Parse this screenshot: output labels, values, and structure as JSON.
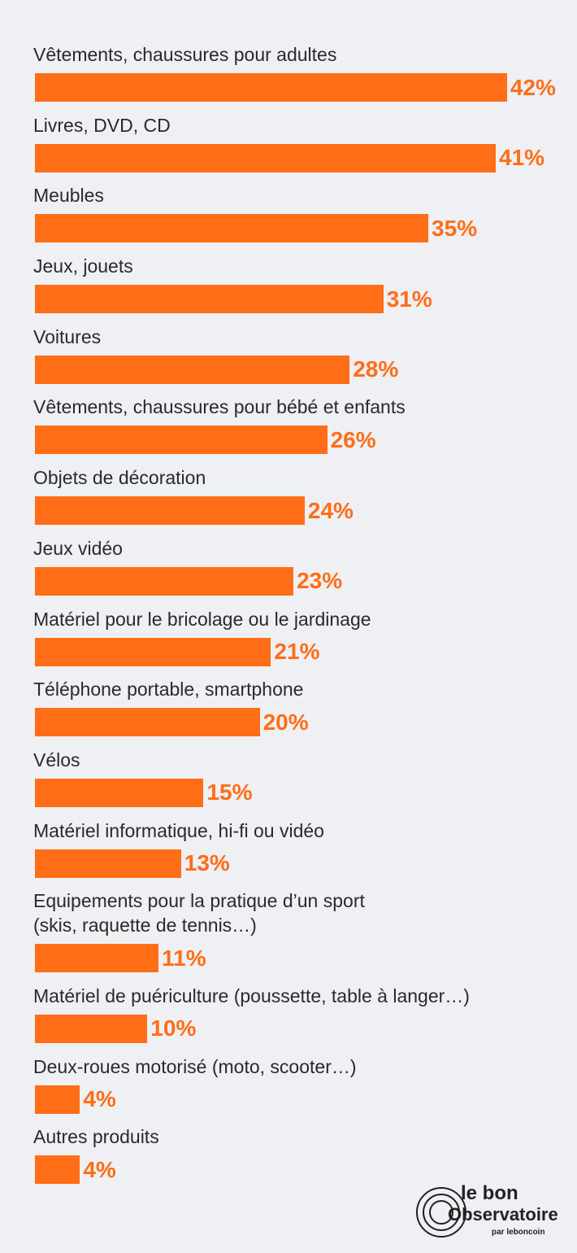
{
  "chart_data": {
    "type": "bar",
    "orientation": "horizontal",
    "color": "#ff6d17",
    "categories": [
      "Vêtements, chaussures pour adultes",
      "Livres, DVD, CD",
      "Meubles",
      "Jeux, jouets",
      "Voitures",
      "Vêtements, chaussures pour bébé et enfants",
      "Objets de décoration",
      "Jeux vidéo",
      "Matériel pour le bricolage ou le jardinage",
      "Téléphone portable, smartphone",
      "Vélos",
      "Matériel informatique, hi-fi ou vidéo",
      "Equipements pour la pratique d’un sport\n(skis, raquette de tennis…)",
      "Matériel de puériculture (poussette, table à langer…)",
      "Deux-roues motorisé (moto, scooter…)",
      "Autres produits"
    ],
    "values": [
      42,
      41,
      35,
      31,
      28,
      26,
      24,
      23,
      21,
      20,
      15,
      13,
      11,
      10,
      4,
      4
    ],
    "value_labels": [
      "42%",
      "41%",
      "35%",
      "31%",
      "28%",
      "26%",
      "24%",
      "23%",
      "21%",
      "20%",
      "15%",
      "13%",
      "11%",
      "10%",
      "4%",
      "4%"
    ]
  },
  "logo": {
    "line1": "le bon",
    "line2": "Observatoire",
    "line3": "par leboncoin"
  }
}
